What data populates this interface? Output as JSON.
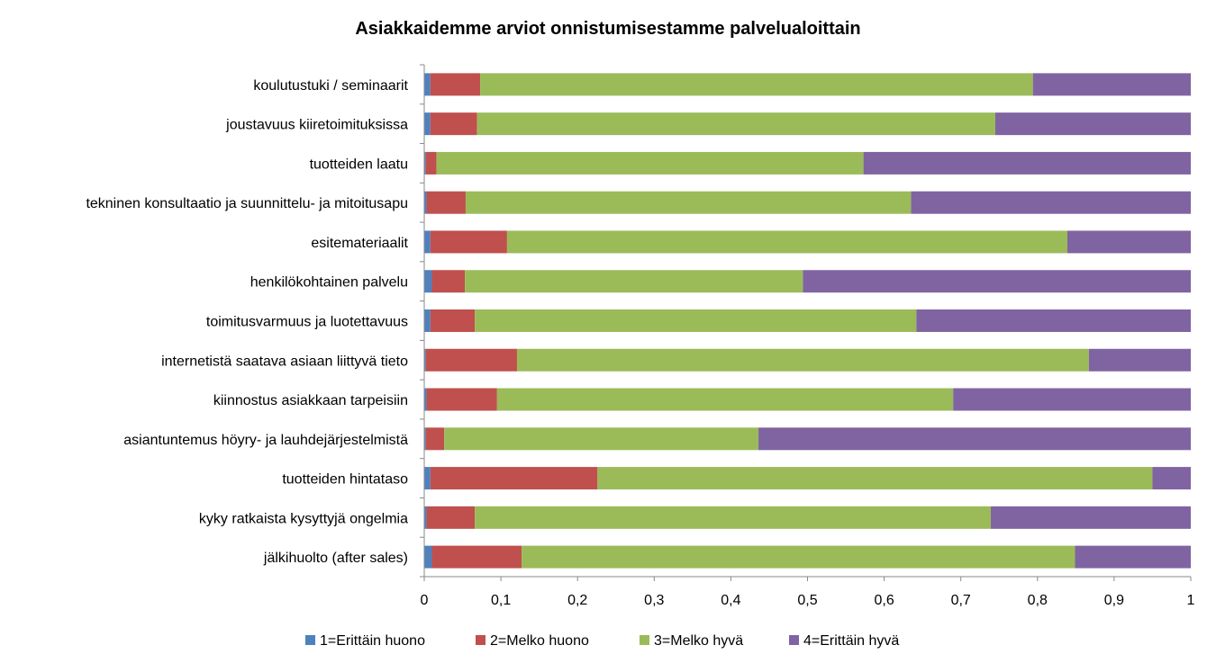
{
  "chart_data": {
    "type": "bar",
    "orientation": "horizontal",
    "stacked": true,
    "title": "Asiakkaidemme arviot onnistumisestamme palvelualoittain",
    "xlabel": "",
    "ylabel": "",
    "xlim": [
      0,
      1
    ],
    "xticks": [
      "0",
      "0,1",
      "0,2",
      "0,3",
      "0,4",
      "0,5",
      "0,6",
      "0,7",
      "0,8",
      "0,9",
      "1"
    ],
    "grid": false,
    "legend_position": "bottom",
    "categories": [
      "koulutustuki / seminaarit",
      "joustavuus kiiretoimituksissa",
      "tuotteiden laatu",
      "tekninen konsultaatio ja suunnittelu- ja mitoitusapu",
      "esitemateriaalit",
      "henkilökohtainen palvelu",
      "toimitusvarmuus ja luotettavuus",
      "internetistä saatava asiaan liittyvä tieto",
      "kiinnostus asiakkaan tarpeisiin",
      "asiantuntemus höyry- ja lauhdejärjestelmistä",
      "tuotteiden hintataso",
      "kyky ratkaista kysyttyjä ongelmia",
      "jälkihuolto (after sales)"
    ],
    "series": [
      {
        "name": "1=Erittäin huono",
        "color": "#4F81BD",
        "values": [
          0.008,
          0.008,
          0.002,
          0.003,
          0.008,
          0.01,
          0.008,
          0.002,
          0.003,
          0.002,
          0.008,
          0.003,
          0.01
        ]
      },
      {
        "name": "2=Melko huono",
        "color": "#C0504D",
        "values": [
          0.065,
          0.061,
          0.014,
          0.051,
          0.1,
          0.043,
          0.058,
          0.119,
          0.092,
          0.024,
          0.218,
          0.063,
          0.117
        ]
      },
      {
        "name": "3=Melko hyvä",
        "color": "#9BBB59",
        "values": [
          0.721,
          0.676,
          0.557,
          0.581,
          0.731,
          0.441,
          0.576,
          0.746,
          0.595,
          0.41,
          0.724,
          0.673,
          0.722
        ]
      },
      {
        "name": "4=Erittäin hyvä",
        "color": "#8064A2",
        "values": [
          0.206,
          0.255,
          0.427,
          0.365,
          0.161,
          0.506,
          0.358,
          0.133,
          0.31,
          0.564,
          0.05,
          0.261,
          0.151
        ]
      }
    ]
  }
}
